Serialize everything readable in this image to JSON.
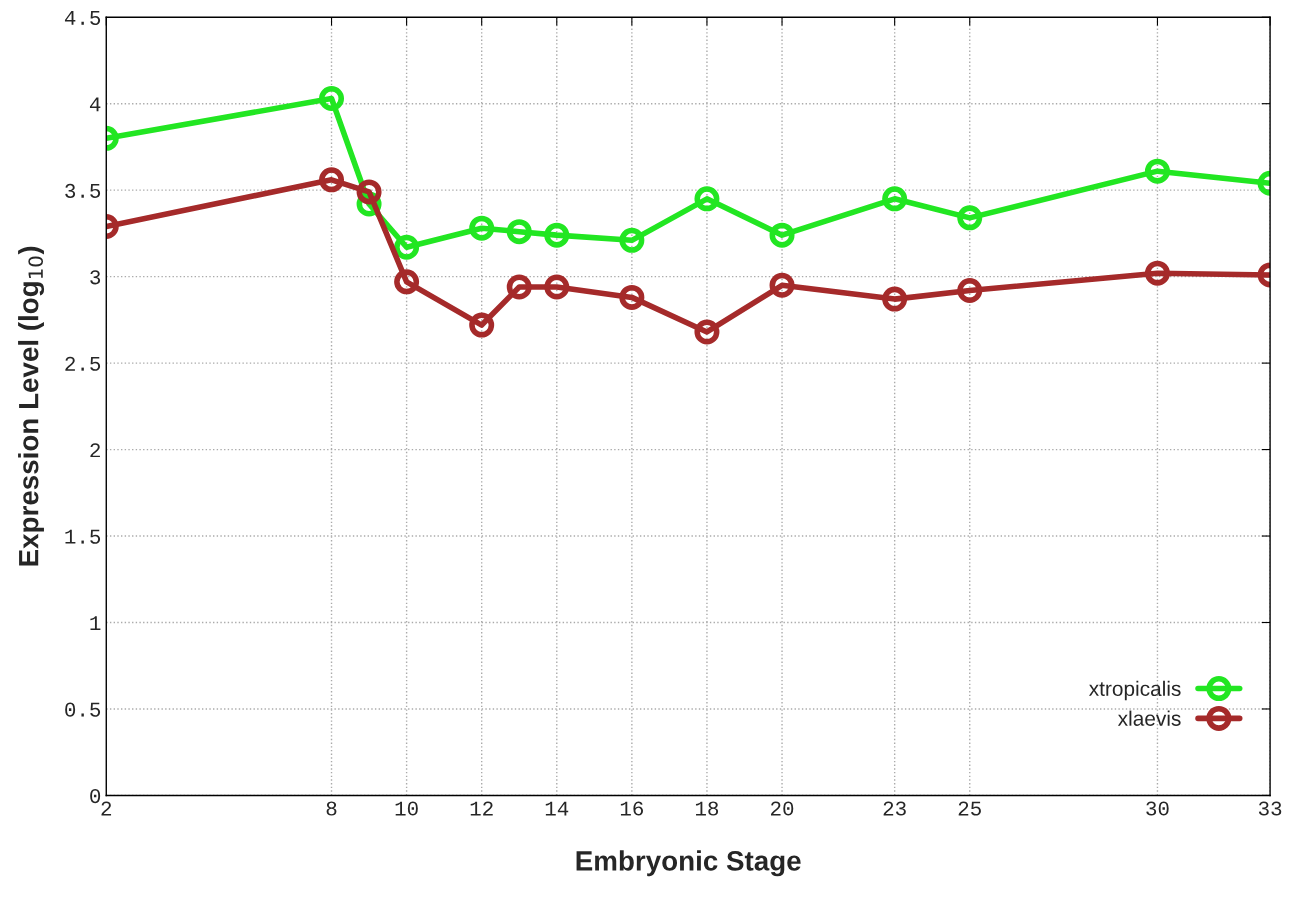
{
  "chart_data": {
    "type": "line",
    "xlabel": "Embryonic Stage",
    "ylabel": "Expression Level (log$_{10}$)",
    "x": [
      2,
      8,
      9,
      10,
      12,
      13,
      14,
      16,
      18,
      20,
      23,
      25,
      30,
      33
    ],
    "series": [
      {
        "name": "xtropicalis",
        "color": "#22e622",
        "values": [
          3.8,
          4.03,
          3.42,
          3.17,
          3.28,
          3.26,
          3.24,
          3.21,
          3.45,
          3.24,
          3.45,
          3.34,
          3.61,
          3.54
        ]
      },
      {
        "name": "xlaevis",
        "color": "#a52a2a",
        "values": [
          3.29,
          3.56,
          3.49,
          2.97,
          2.72,
          2.94,
          2.94,
          2.88,
          2.68,
          2.95,
          2.87,
          2.92,
          3.02,
          3.01
        ]
      }
    ],
    "xlim": [
      2,
      33
    ],
    "xticks": [
      2,
      8,
      10,
      12,
      14,
      16,
      18,
      20,
      23,
      25,
      30,
      33
    ],
    "ylim": [
      0,
      4.5
    ],
    "yticks": [
      0,
      0.5,
      1,
      1.5,
      2,
      2.5,
      3,
      3.5,
      4,
      4.5
    ],
    "grid": true,
    "legend": "bottom right",
    "marker": "circle",
    "line_style": "solid"
  }
}
